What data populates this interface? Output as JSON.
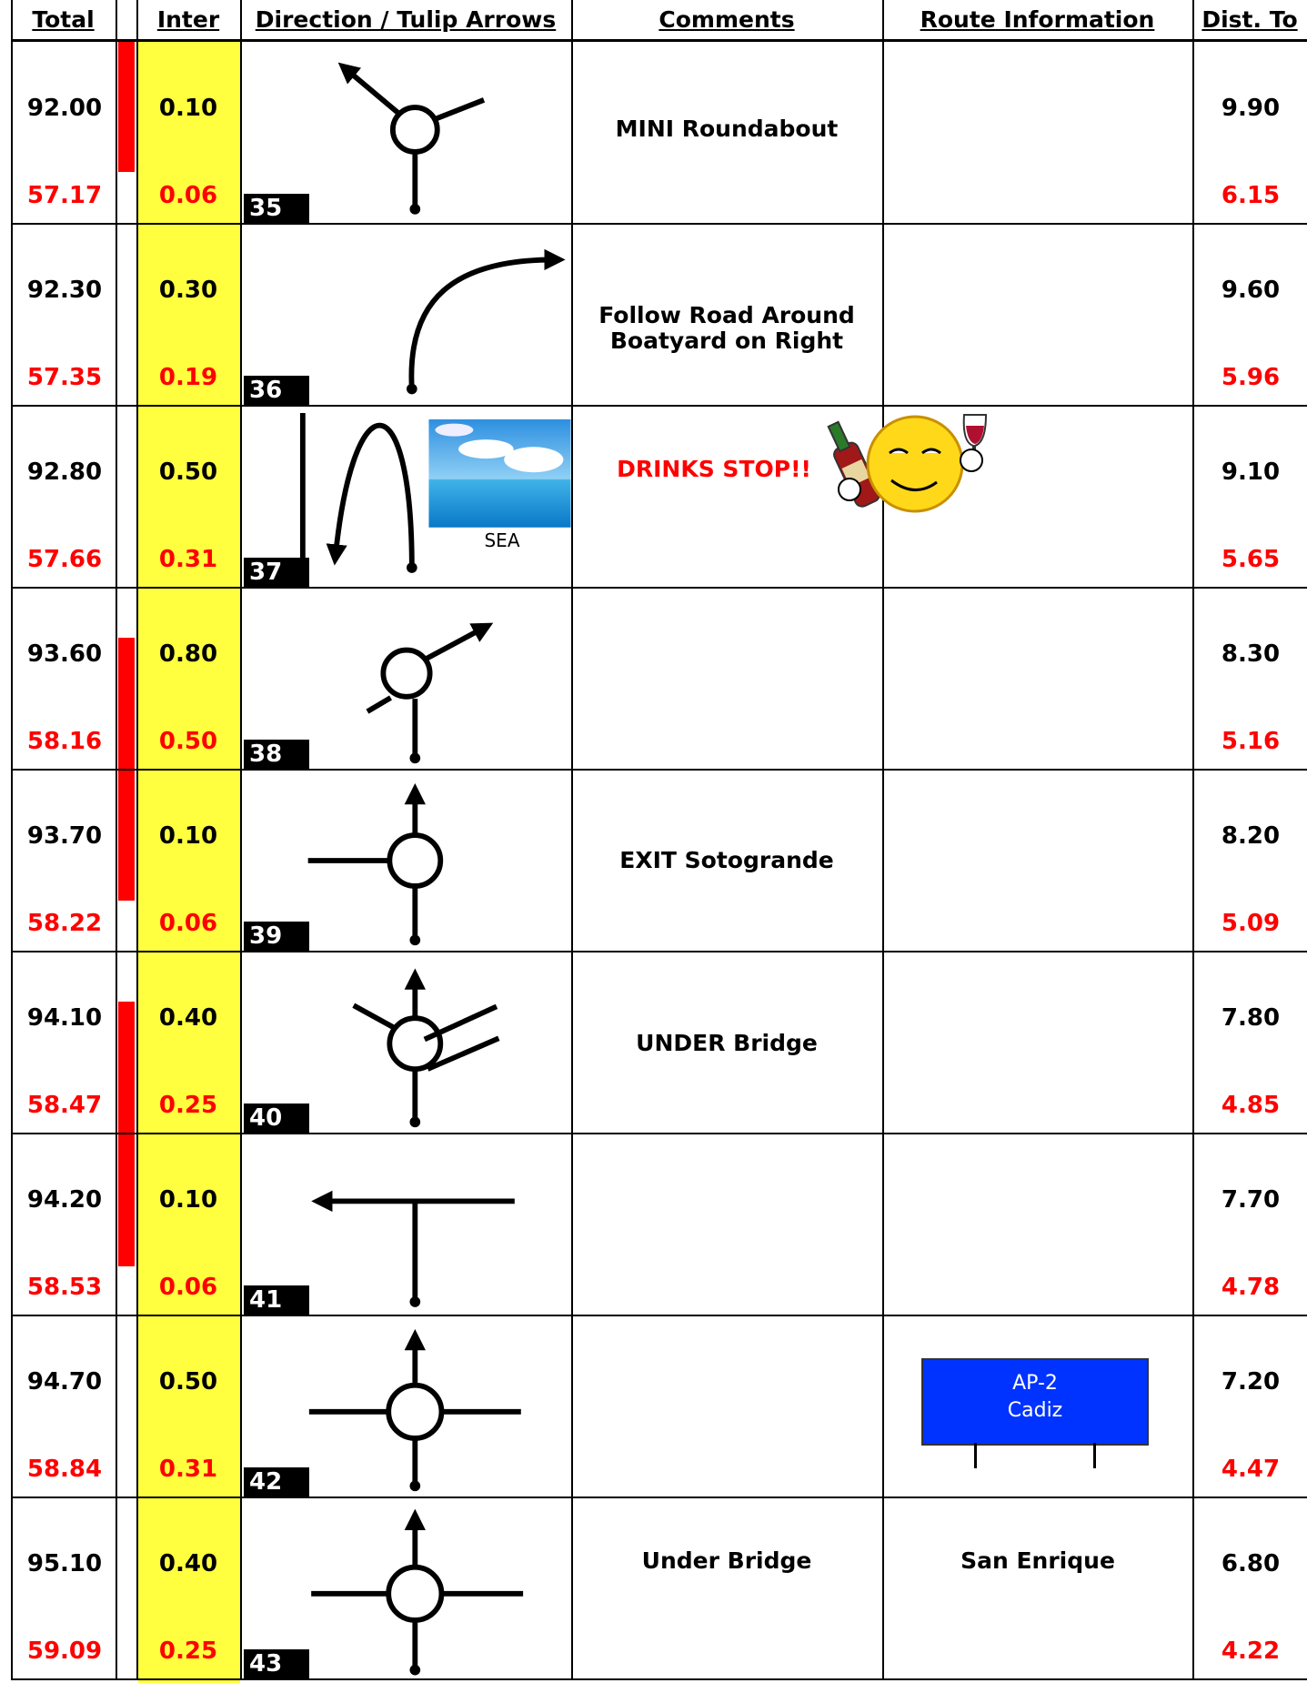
{
  "header": {
    "columns": [
      "Total",
      "Inter",
      "Direction / Tulip Arrows",
      "Comments",
      "Route Information",
      "Dist. To"
    ]
  },
  "rows": [
    {
      "step": "35",
      "total": "92.00",
      "total_reset": "57.17",
      "inter": "0.10",
      "inter_reset": "0.06",
      "comment": "MINI Roundabout",
      "dist": "9.90",
      "dist_remaining": "6.15"
    },
    {
      "step": "36",
      "total": "92.30",
      "total_reset": "57.35",
      "inter": "0.30",
      "inter_reset": "0.19",
      "comment": "Follow Road Around Boatyard on Right",
      "dist": "9.60",
      "dist_remaining": "5.96"
    },
    {
      "step": "37",
      "total": "92.80",
      "total_reset": "57.66",
      "inter": "0.50",
      "inter_reset": "0.31",
      "comment": "DRINKS STOP!!",
      "sea_label": "SEA",
      "dist": "9.10",
      "dist_remaining": "5.65"
    },
    {
      "step": "38",
      "total": "93.60",
      "total_reset": "58.16",
      "inter": "0.80",
      "inter_reset": "0.50",
      "dist": "8.30",
      "dist_remaining": "5.16"
    },
    {
      "step": "39",
      "total": "93.70",
      "total_reset": "58.22",
      "inter": "0.10",
      "inter_reset": "0.06",
      "comment": "EXIT Sotogrande",
      "dist": "8.20",
      "dist_remaining": "5.09"
    },
    {
      "step": "40",
      "total": "94.10",
      "total_reset": "58.47",
      "inter": "0.40",
      "inter_reset": "0.25",
      "comment": "UNDER Bridge",
      "dist": "7.80",
      "dist_remaining": "4.85"
    },
    {
      "step": "41",
      "total": "94.20",
      "total_reset": "58.53",
      "inter": "0.10",
      "inter_reset": "0.06",
      "dist": "7.70",
      "dist_remaining": "4.78"
    },
    {
      "step": "42",
      "total": "94.70",
      "total_reset": "58.84",
      "inter": "0.50",
      "inter_reset": "0.31",
      "sign": [
        "AP-2",
        "Cadiz"
      ],
      "dist": "7.20",
      "dist_remaining": "4.47"
    },
    {
      "step": "43",
      "total": "95.10",
      "total_reset": "59.09",
      "inter": "0.40",
      "inter_reset": "0.25",
      "comment": "Under Bridge",
      "route": "San Enrique",
      "dist": "6.80",
      "dist_remaining": "4.22"
    }
  ]
}
